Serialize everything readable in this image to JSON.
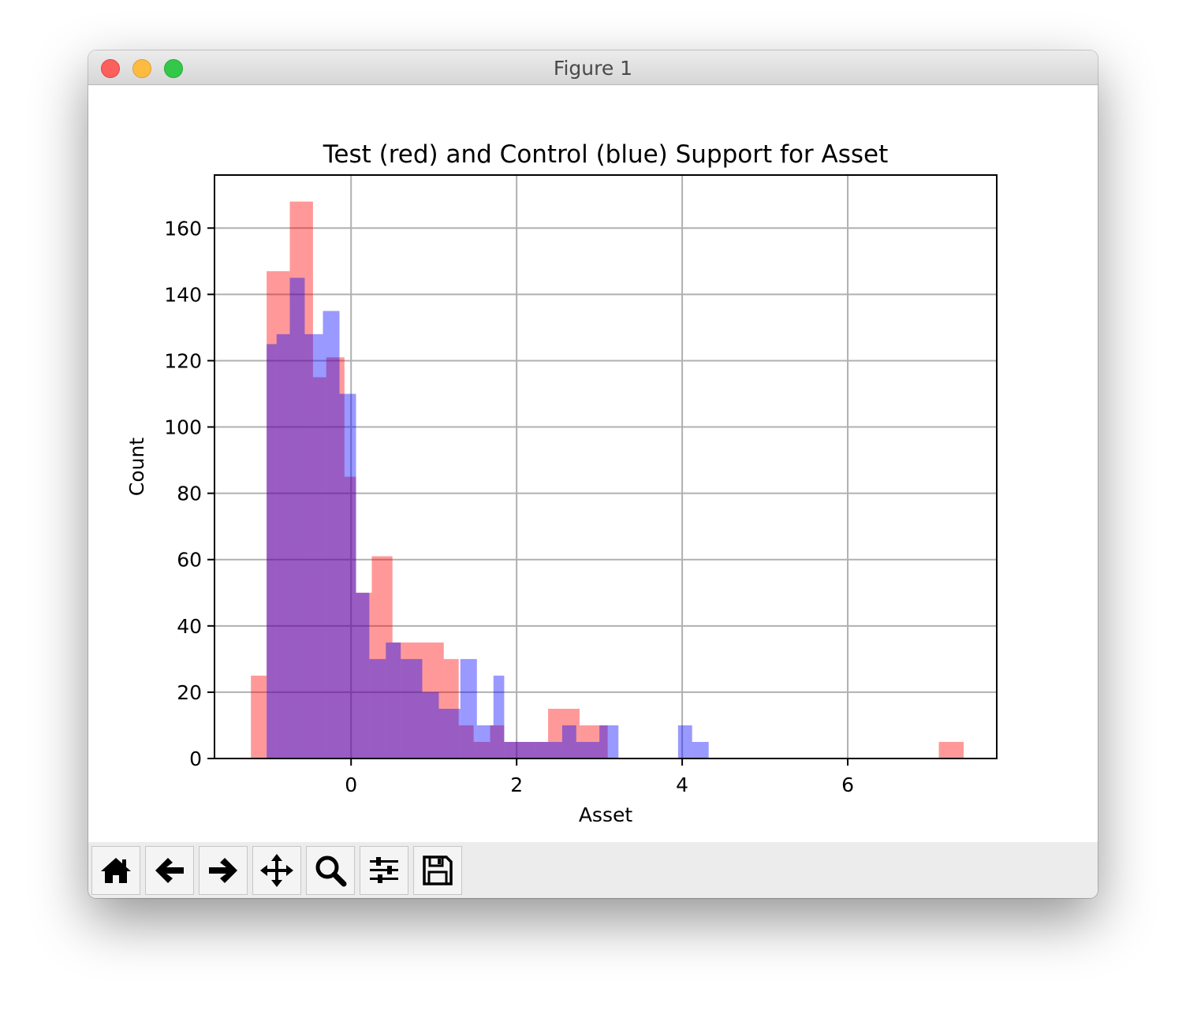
{
  "window": {
    "title": "Figure 1"
  },
  "toolbar": {
    "buttons": [
      {
        "icon": "home-icon"
      },
      {
        "icon": "arrow-left-icon"
      },
      {
        "icon": "arrow-right-icon"
      },
      {
        "icon": "move-icon"
      },
      {
        "icon": "zoom-icon"
      },
      {
        "icon": "sliders-icon"
      },
      {
        "icon": "save-icon"
      }
    ]
  },
  "chart_data": {
    "type": "bar",
    "subtype": "overlaid histogram",
    "title": "Test (red) and Control (blue) Support for Asset",
    "xlabel": "Asset",
    "ylabel": "Count",
    "xlim": [
      -1.65,
      7.8
    ],
    "ylim": [
      0,
      176
    ],
    "xticks": [
      0,
      2,
      4,
      6
    ],
    "yticks": [
      0,
      20,
      40,
      60,
      80,
      100,
      120,
      140,
      160
    ],
    "grid": true,
    "legend": "none",
    "series": [
      {
        "color": "#ff0000",
        "alpha": 0.4,
        "bins": [
          [
            -1.21,
            -1.02,
            25
          ],
          [
            -1.02,
            -0.74,
            147
          ],
          [
            -0.74,
            -0.46,
            168
          ],
          [
            -0.46,
            -0.3,
            115
          ],
          [
            -0.3,
            -0.08,
            121
          ],
          [
            -0.08,
            0.06,
            85
          ],
          [
            0.06,
            0.25,
            50
          ],
          [
            0.25,
            0.5,
            61
          ],
          [
            0.5,
            0.78,
            35
          ],
          [
            0.78,
            1.12,
            35
          ],
          [
            1.12,
            1.3,
            30
          ],
          [
            1.3,
            1.48,
            10
          ],
          [
            1.48,
            1.68,
            5
          ],
          [
            1.68,
            1.85,
            10
          ],
          [
            1.85,
            2.0,
            5
          ],
          [
            2.0,
            2.22,
            5
          ],
          [
            2.22,
            2.38,
            5
          ],
          [
            2.38,
            2.58,
            15
          ],
          [
            2.58,
            2.76,
            15
          ],
          [
            2.76,
            3.1,
            10
          ],
          [
            7.1,
            7.4,
            5
          ]
        ]
      },
      {
        "color": "#0000ff",
        "alpha": 0.4,
        "bins": [
          [
            -1.02,
            -0.9,
            125
          ],
          [
            -0.9,
            -0.74,
            128
          ],
          [
            -0.74,
            -0.56,
            145
          ],
          [
            -0.56,
            -0.34,
            128
          ],
          [
            -0.34,
            -0.14,
            135
          ],
          [
            -0.14,
            0.06,
            110
          ],
          [
            0.06,
            0.22,
            50
          ],
          [
            0.22,
            0.42,
            30
          ],
          [
            0.42,
            0.6,
            35
          ],
          [
            0.6,
            0.86,
            30
          ],
          [
            0.86,
            1.06,
            20
          ],
          [
            1.06,
            1.32,
            15
          ],
          [
            1.32,
            1.52,
            30
          ],
          [
            1.52,
            1.72,
            10
          ],
          [
            1.72,
            1.85,
            25
          ],
          [
            1.85,
            2.35,
            5
          ],
          [
            2.35,
            2.55,
            5
          ],
          [
            2.55,
            2.72,
            10
          ],
          [
            2.72,
            3.0,
            5
          ],
          [
            3.0,
            3.23,
            10
          ],
          [
            3.95,
            4.12,
            10
          ],
          [
            4.12,
            4.32,
            5
          ]
        ]
      }
    ]
  }
}
